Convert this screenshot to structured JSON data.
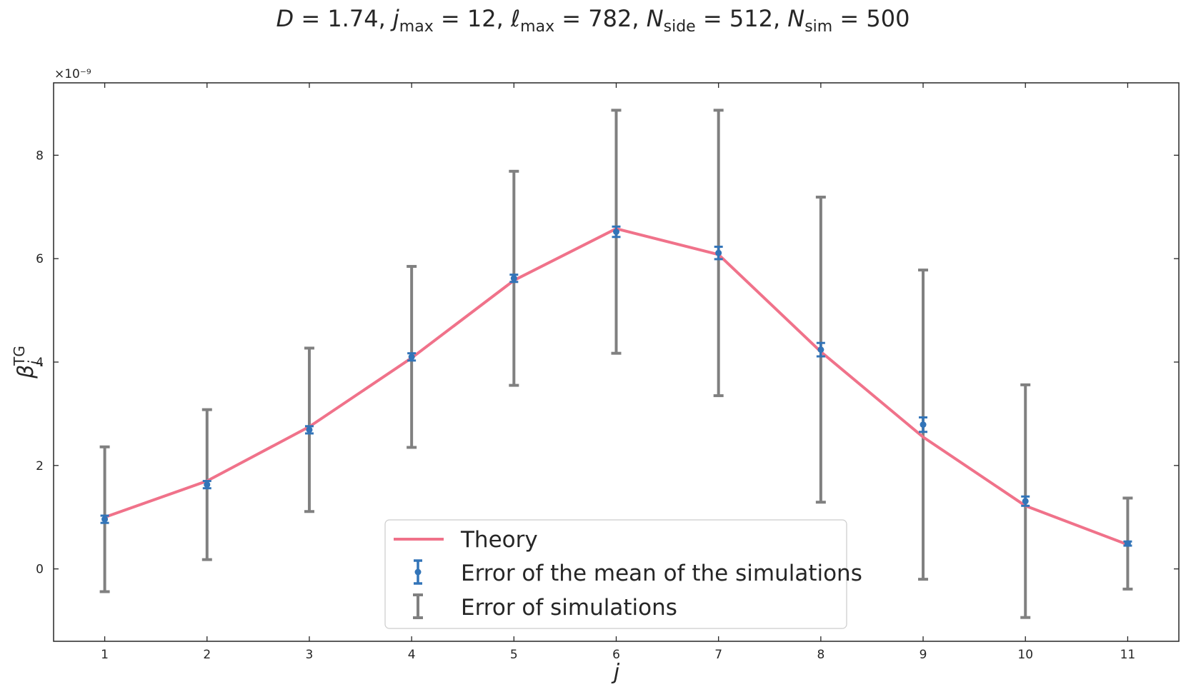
{
  "chart_data": {
    "type": "errorbar",
    "title": "D = 1.74,  j_max = 12,  ℓ_max = 782,  N_side = 512, N_sim = 500",
    "title_parts": {
      "D": "1.74",
      "jmax": "12",
      "lmax": "782",
      "nside": "512",
      "nsim": "500"
    },
    "xlabel": "j",
    "ylabel": "β_j^TG",
    "y_scale_label": "×10⁻⁹",
    "xlim": [
      0.5,
      11.5
    ],
    "ylim": [
      -1.4,
      9.4
    ],
    "x_ticks": [
      1,
      2,
      3,
      4,
      5,
      6,
      7,
      8,
      9,
      10,
      11
    ],
    "y_ticks": [
      0,
      2,
      4,
      6,
      8
    ],
    "x": [
      1,
      2,
      3,
      4,
      5,
      6,
      7,
      8,
      9,
      10,
      11
    ],
    "series": [
      {
        "name": "Theory",
        "kind": "line",
        "color": "#f0728a",
        "values": [
          1.0,
          1.7,
          2.75,
          4.08,
          5.58,
          6.58,
          6.08,
          4.2,
          2.55,
          1.22,
          0.47
        ]
      },
      {
        "name": "Error of the mean of the simulations",
        "kind": "errorbar",
        "color": "#3274b8",
        "values": [
          0.96,
          1.63,
          2.69,
          4.1,
          5.62,
          6.52,
          6.11,
          4.24,
          2.79,
          1.31,
          0.49
        ],
        "errors": [
          0.07,
          0.07,
          0.07,
          0.07,
          0.07,
          0.1,
          0.12,
          0.13,
          0.14,
          0.09,
          0.04
        ]
      },
      {
        "name": "Error of simulations",
        "kind": "errorbar",
        "color": "#808080",
        "values": [
          0.96,
          1.63,
          2.69,
          4.1,
          5.62,
          6.52,
          6.11,
          4.24,
          2.79,
          1.31,
          0.49
        ],
        "errors": [
          1.4,
          1.45,
          1.58,
          1.75,
          2.07,
          2.35,
          2.76,
          2.95,
          2.99,
          2.25,
          0.88
        ]
      }
    ],
    "legend_position": "lower-center"
  }
}
